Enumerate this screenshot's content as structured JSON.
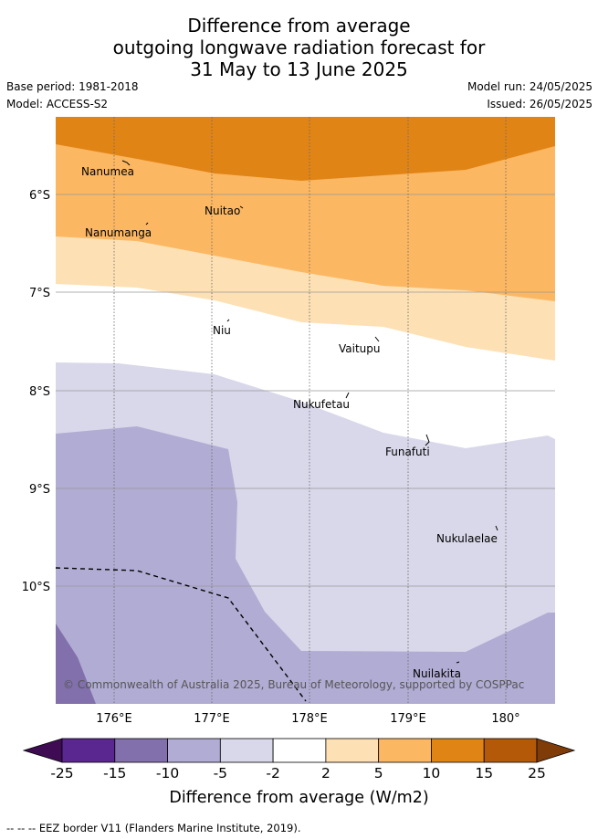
{
  "title": {
    "line1": "Difference from average",
    "line2": "outgoing longwave radiation forecast for",
    "line3": "31 May to 13 June 2025"
  },
  "meta": {
    "base_period": "Base period: 1981-2018",
    "model": "Model: ACCESS-S2",
    "model_run": "Model run: 24/05/2025",
    "issued": "Issued: 26/05/2025"
  },
  "axes": {
    "lat_labels": [
      "6°S",
      "7°S",
      "8°S",
      "9°S",
      "10°S"
    ],
    "lon_labels": [
      "176°E",
      "177°E",
      "178°E",
      "179°E",
      "180°"
    ]
  },
  "places": [
    "Nanumea",
    "Nuitao",
    "Nanumanga",
    "Niu",
    "Vaitupu",
    "Nukufetau",
    "Funafuti",
    "Nukulaelae",
    "Nuilakita"
  ],
  "copyright": "© Commonwealth of Australia 2025, Bureau of Meteorology, supported by COSPPac",
  "colorbar": {
    "labels": [
      "-25",
      "-15",
      "-10",
      "-5",
      "-2",
      "2",
      "5",
      "10",
      "15",
      "25"
    ],
    "colors": [
      "#3f0c54",
      "#5a2690",
      "#8170ab",
      "#b1acd3",
      "#d8d8ea",
      "#ffffff",
      "#fde0b4",
      "#fcb762",
      "#e08416",
      "#b35908",
      "#7f3b08"
    ],
    "title": "Difference from average (W/m2)"
  },
  "legend": {
    "eez": "-- -- -- EEZ border V11 (Flanders Marine Institute, 2019)."
  }
}
